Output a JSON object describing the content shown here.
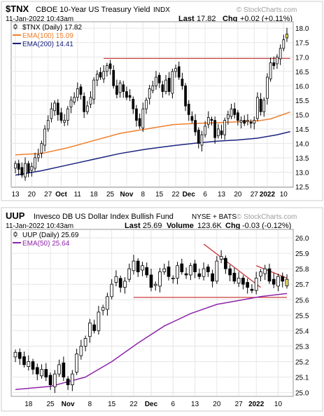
{
  "chart_data": [
    {
      "type": "candlestick",
      "symbol": "$TNX",
      "title": "CBOE 10-Year US Treasury Yield",
      "exchange": "INDX",
      "date": "11-Jan-2022 10:43am",
      "last_label": "Last",
      "last": "17.82",
      "chg_label": "Chg",
      "chg": "+0.02 (+0.11%)",
      "brand": "© StockCharts.com",
      "legend": [
        {
          "label": "$TNX (Daily) 17.82",
          "color": "#000000",
          "kind": "candle"
        },
        {
          "label": "EMA(100) 15.09",
          "color": "#f07f2c",
          "kind": "line"
        },
        {
          "label": "EMA(200) 14.41",
          "color": "#1a237e",
          "kind": "line"
        }
      ],
      "ylim": [
        12.5,
        18.2
      ],
      "yticks": [
        "12.5",
        "13.0",
        "13.5",
        "14.0",
        "14.5",
        "15.0",
        "15.5",
        "16.0",
        "16.5",
        "17.0",
        "17.5",
        "18.0"
      ],
      "xlabels": [
        {
          "i": 0,
          "label": "13"
        },
        {
          "i": 5,
          "label": "20"
        },
        {
          "i": 10,
          "label": "27"
        },
        {
          "i": 14,
          "label": "Oct"
        },
        {
          "i": 19,
          "label": "11"
        },
        {
          "i": 24,
          "label": "18"
        },
        {
          "i": 29,
          "label": "25"
        },
        {
          "i": 34,
          "label": "Nov"
        },
        {
          "i": 39,
          "label": "8"
        },
        {
          "i": 44,
          "label": "15"
        },
        {
          "i": 49,
          "label": "22"
        },
        {
          "i": 53,
          "label": "Dec"
        },
        {
          "i": 58,
          "label": "6"
        },
        {
          "i": 63,
          "label": "13"
        },
        {
          "i": 68,
          "label": "20"
        },
        {
          "i": 73,
          "label": "27"
        },
        {
          "i": 77,
          "label": "2022"
        },
        {
          "i": 82,
          "label": "10"
        }
      ],
      "close": [
        13.3,
        13.1,
        12.9,
        13.3,
        13.0,
        13.2,
        13.5,
        13.6,
        14.0,
        14.5,
        14.8,
        15.2,
        15.4,
        15.0,
        14.8,
        14.8,
        15.2,
        15.5,
        15.6,
        15.9,
        15.7,
        15.1,
        15.3,
        15.6,
        16.2,
        16.4,
        16.3,
        16.5,
        16.7,
        16.6,
        16.0,
        15.7,
        16.1,
        15.8,
        15.6,
        15.6,
        15.2,
        14.8,
        14.6,
        15.2,
        15.5,
        15.9,
        16.0,
        16.3,
        16.1,
        15.8,
        16.2,
        15.8,
        16.5,
        16.6,
        16.3,
        16.0,
        15.3,
        15.0,
        14.8,
        14.4,
        14.0,
        14.3,
        14.6,
        14.9,
        14.8,
        14.2,
        14.5,
        14.3,
        14.8,
        15.0,
        15.2,
        15.0,
        14.8,
        14.8,
        14.7,
        14.8,
        14.7,
        14.8,
        15.6,
        15.1,
        15.5,
        16.3,
        16.8,
        16.7,
        17.0,
        17.3,
        17.6,
        17.8
      ],
      "trendline": {
        "value": 16.95,
        "from": 27,
        "to": 84,
        "color": "#c62828"
      },
      "ema100": {
        "color": "#f07f2c",
        "points": [
          [
            0,
            13.6
          ],
          [
            8,
            13.65
          ],
          [
            16,
            13.85
          ],
          [
            24,
            14.1
          ],
          [
            32,
            14.35
          ],
          [
            40,
            14.5
          ],
          [
            48,
            14.65
          ],
          [
            56,
            14.7
          ],
          [
            62,
            14.72
          ],
          [
            68,
            14.75
          ],
          [
            74,
            14.78
          ],
          [
            78,
            14.85
          ],
          [
            84,
            15.09
          ]
        ]
      },
      "ema200": {
        "color": "#1a237e",
        "points": [
          [
            0,
            12.9
          ],
          [
            8,
            13.05
          ],
          [
            16,
            13.25
          ],
          [
            24,
            13.45
          ],
          [
            32,
            13.65
          ],
          [
            40,
            13.8
          ],
          [
            48,
            13.92
          ],
          [
            56,
            14.02
          ],
          [
            62,
            14.08
          ],
          [
            68,
            14.12
          ],
          [
            74,
            14.18
          ],
          [
            80,
            14.3
          ],
          [
            84,
            14.41
          ]
        ]
      }
    },
    {
      "type": "candlestick",
      "symbol": "UUP",
      "title": "Invesco DB US Dollar Index Bullish Fund",
      "exchange": "NYSE + BATS",
      "date": "11-Jan-2022 10:43am",
      "last_label": "Last",
      "last": "25.69",
      "volume_label": "Volume",
      "volume": "123.6K",
      "chg_label": "Chg",
      "chg": "-0.03 (-0.12%)",
      "brand": "© StockCharts.com",
      "legend": [
        {
          "label": "UUP (Daily) 25.69",
          "color": "#000000",
          "kind": "candle"
        },
        {
          "label": "EMA(50) 25.64",
          "color": "#8e24aa",
          "kind": "line"
        }
      ],
      "ylim": [
        24.98,
        26.05
      ],
      "yticks": [
        "25.0",
        "25.1",
        "25.2",
        "25.3",
        "25.4",
        "25.5",
        "25.6",
        "25.7",
        "25.8",
        "25.9",
        "26.0"
      ],
      "xlabels": [
        {
          "i": 3,
          "label": "18"
        },
        {
          "i": 8,
          "label": "25"
        },
        {
          "i": 12,
          "label": "Nov"
        },
        {
          "i": 17,
          "label": "8"
        },
        {
          "i": 22,
          "label": "15"
        },
        {
          "i": 27,
          "label": "22"
        },
        {
          "i": 31,
          "label": "Dec"
        },
        {
          "i": 36,
          "label": "6"
        },
        {
          "i": 41,
          "label": "13"
        },
        {
          "i": 46,
          "label": "20"
        },
        {
          "i": 51,
          "label": "27"
        },
        {
          "i": 55,
          "label": "2022"
        },
        {
          "i": 60,
          "label": "10"
        }
      ],
      "close": [
        25.26,
        25.22,
        25.18,
        25.2,
        25.15,
        25.12,
        25.15,
        25.1,
        25.05,
        25.12,
        25.18,
        25.1,
        25.05,
        25.12,
        25.25,
        25.3,
        25.35,
        25.45,
        25.4,
        25.52,
        25.55,
        25.62,
        25.7,
        25.75,
        25.68,
        25.72,
        25.8,
        25.85,
        25.78,
        25.82,
        25.76,
        25.68,
        25.7,
        25.78,
        25.8,
        25.75,
        25.74,
        25.82,
        25.78,
        25.76,
        25.82,
        25.78,
        25.75,
        25.8,
        25.78,
        25.72,
        25.85,
        25.88,
        25.8,
        25.76,
        25.72,
        25.74,
        25.7,
        25.68,
        25.66,
        25.74,
        25.78,
        25.8,
        25.72,
        25.7,
        25.75,
        25.72,
        25.69
      ],
      "trendline": {
        "value": 25.615,
        "from": 27,
        "to": 62,
        "color": "#c62828"
      },
      "wedge": [
        {
          "from": [
            43,
            25.96
          ],
          "to": [
            56,
            25.68
          ]
        },
        {
          "from": [
            55,
            25.82
          ],
          "to": [
            62,
            25.74
          ]
        }
      ],
      "ema50": {
        "color": "#8e24aa",
        "points": [
          [
            0,
            25.02
          ],
          [
            8,
            25.04
          ],
          [
            16,
            25.1
          ],
          [
            22,
            25.2
          ],
          [
            28,
            25.32
          ],
          [
            34,
            25.43
          ],
          [
            40,
            25.51
          ],
          [
            46,
            25.57
          ],
          [
            52,
            25.6
          ],
          [
            56,
            25.62
          ],
          [
            62,
            25.64
          ]
        ]
      }
    }
  ]
}
